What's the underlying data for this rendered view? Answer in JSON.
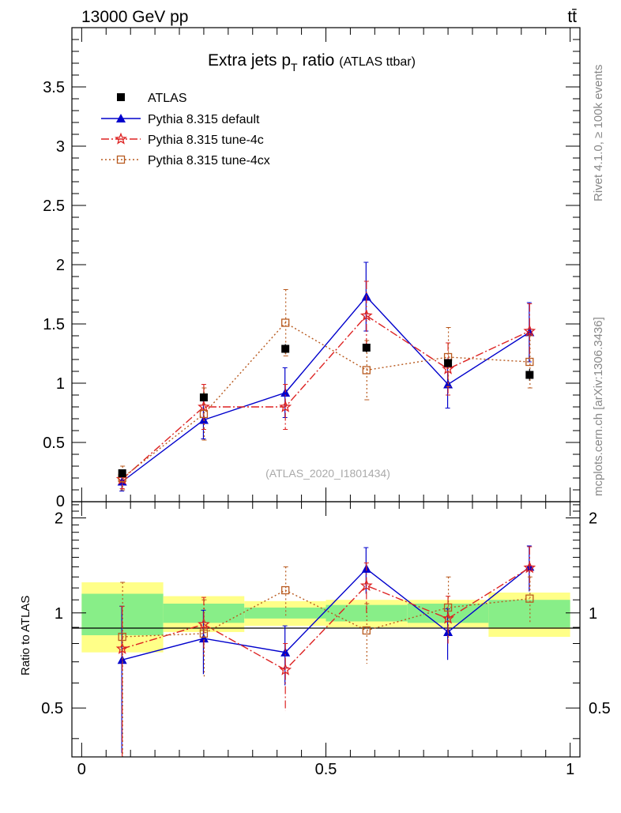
{
  "header": {
    "energy_label": "13000 GeV pp",
    "process_label": "tt̄"
  },
  "side_labels": {
    "rivet": "Rivet 4.1.0, ≥ 100k events",
    "mcplots": "mcplots.cern.ch [arXiv:1306.3436]"
  },
  "chart_data": {
    "type": "scatter",
    "title": "Extra jets p",
    "title_sub": "T",
    "title_suffix": " ratio",
    "title_note": "(ATLAS ttbar)",
    "watermark": "(ATLAS_2020_I1801434)",
    "xlim": [
      -0.02,
      1.02
    ],
    "main_ylim": [
      0,
      4
    ],
    "ratio_ylim": [
      0.35,
      2.25
    ],
    "ratio_ylabel": "Ratio to ATLAS",
    "main_yticks": [
      "0.5",
      "1",
      "1.5",
      "2",
      "2.5",
      "3",
      "3.5"
    ],
    "main_ytick_values": [
      0.5,
      1,
      1.5,
      2,
      2.5,
      3,
      3.5
    ],
    "main_zero_label": "0",
    "ratio_yticks": [
      "0.5",
      "1",
      "2"
    ],
    "ratio_ytick_values": [
      0.5,
      1,
      2
    ],
    "xticks": [
      "0",
      "0.5",
      "1"
    ],
    "xtick_values": [
      0,
      0.5,
      1
    ],
    "bins": [
      [
        0.0,
        0.167
      ],
      [
        0.167,
        0.333
      ],
      [
        0.333,
        0.5
      ],
      [
        0.5,
        0.667
      ],
      [
        0.667,
        0.833
      ],
      [
        0.833,
        1.0
      ]
    ],
    "x": [
      0.083,
      0.25,
      0.417,
      0.583,
      0.75,
      0.917
    ],
    "data": {
      "name": "ATLAS",
      "values": [
        0.24,
        0.88,
        1.29,
        1.3,
        1.17,
        1.07
      ],
      "errors": [
        0.03,
        0.05,
        0.04,
        0.04,
        0.04,
        0.05
      ],
      "band_green": [
        0.15,
        0.07,
        0.04,
        0.06,
        0.07,
        0.1
      ],
      "band_yellow": [
        0.25,
        0.13,
        0.09,
        0.1,
        0.1,
        0.16
      ]
    },
    "series": [
      {
        "name": "Pythia 8.315 default",
        "color": "#0000cc",
        "marker": "triangle",
        "dash": "",
        "values": [
          0.17,
          0.69,
          0.92,
          1.73,
          0.99,
          1.43
        ],
        "errors": [
          0.08,
          0.16,
          0.21,
          0.29,
          0.2,
          0.25
        ]
      },
      {
        "name": "Pythia 8.315 tune-4c",
        "color": "#dd2222",
        "marker": "star",
        "dash": "10,3,2,3",
        "values": [
          0.19,
          0.8,
          0.8,
          1.57,
          1.12,
          1.44
        ],
        "errors": [
          0.08,
          0.19,
          0.19,
          0.29,
          0.22,
          0.23
        ]
      },
      {
        "name": "Pythia 8.315 tune-4cx",
        "color": "#b85a1f",
        "marker": "square-open",
        "dash": "2,3",
        "values": [
          0.2,
          0.74,
          1.51,
          1.11,
          1.22,
          1.18
        ],
        "errors": [
          0.1,
          0.22,
          0.28,
          0.25,
          0.25,
          0.22
        ]
      }
    ],
    "ratio_series": [
      {
        "values": [
          0.71,
          0.83,
          0.75,
          1.38,
          0.87,
          1.4
        ],
        "lo": [
          0.36,
          0.64,
          0.59,
          1.15,
          0.71,
          1.17
        ],
        "hi": [
          1.05,
          1.02,
          0.91,
          1.61,
          1.03,
          1.63
        ]
      },
      {
        "values": [
          0.77,
          0.92,
          0.66,
          1.22,
          0.96,
          1.39
        ],
        "lo": [
          0.3,
          0.73,
          0.49,
          1.0,
          0.8,
          1.18
        ],
        "hi": [
          1.05,
          1.12,
          0.8,
          1.44,
          1.13,
          1.62
        ]
      },
      {
        "values": [
          0.84,
          0.86,
          1.18,
          0.88,
          1.04,
          1.11
        ],
        "lo": [
          0.3,
          0.62,
          0.98,
          0.69,
          0.83,
          0.92
        ],
        "hi": [
          1.25,
          1.1,
          1.4,
          1.07,
          1.3,
          1.3
        ]
      }
    ]
  }
}
